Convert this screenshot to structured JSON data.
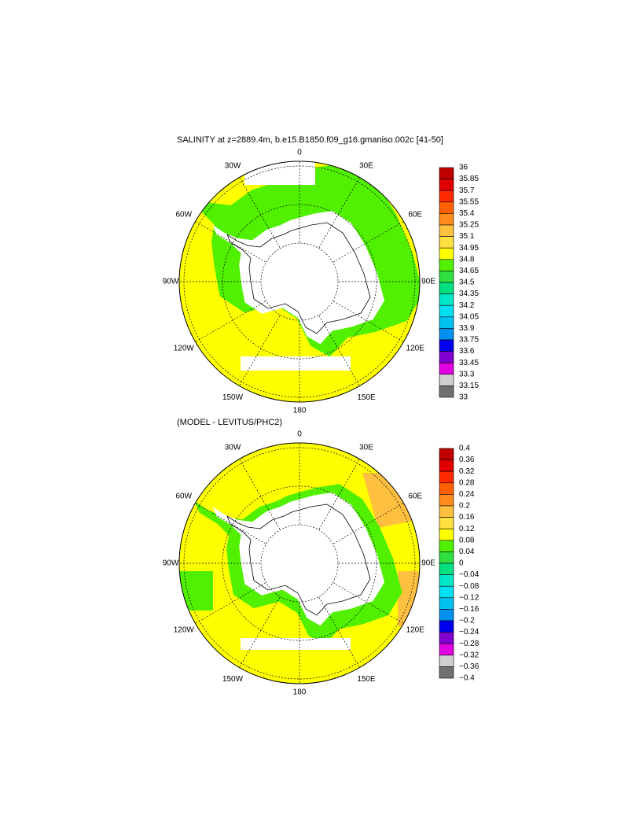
{
  "panels": [
    {
      "title": "SALINITY at z=2889.4m, b.e15.B1850.f09_g16.gmaniso.002c [41-50]",
      "lon_labels": [
        "0",
        "30E",
        "60E",
        "90E",
        "120E",
        "150E",
        "180",
        "150W",
        "120W",
        "90W",
        "60W",
        "30W"
      ],
      "colorbar": {
        "labels": [
          "36",
          "35.85",
          "35.7",
          "35.55",
          "35.4",
          "35.25",
          "35.1",
          "34.95",
          "34.8",
          "34.65",
          "34.5",
          "34.35",
          "34.2",
          "34.05",
          "33.9",
          "33.75",
          "33.6",
          "33.45",
          "33.3",
          "33.15",
          "33"
        ],
        "colors": [
          "#c00000",
          "#e00000",
          "#ff2a00",
          "#ff6000",
          "#ff8c1a",
          "#ffa030",
          "#ffc040",
          "#ffe040",
          "#ffff00",
          "#50f000",
          "#30e040",
          "#00e080",
          "#00e8c8",
          "#00e0f0",
          "#00c0f0",
          "#0090f0",
          "#0050f0",
          "#0000f0",
          "#8000d0",
          "#e000e0",
          "#d0d0d0",
          "#707070"
        ]
      }
    },
    {
      "title": "(MODEL - LEVITUS/PHC2)",
      "lon_labels": [
        "0",
        "30E",
        "60E",
        "90E",
        "120E",
        "150E",
        "180",
        "150W",
        "120W",
        "90W",
        "60W",
        "30W"
      ],
      "colorbar": {
        "labels": [
          "0.4",
          "0.36",
          "0.32",
          "0.28",
          "0.24",
          "0.2",
          "0.16",
          "0.12",
          "0.08",
          "0.04",
          "0",
          "−0.04",
          "−0.08",
          "−0.12",
          "−0.16",
          "−0.2",
          "−0.24",
          "−0.28",
          "−0.32",
          "−0.36",
          "−0.4"
        ],
        "colors": [
          "#c00000",
          "#e00000",
          "#ff2a00",
          "#ff6000",
          "#ff8c1a",
          "#ffa030",
          "#ffc040",
          "#ffe040",
          "#ffff00",
          "#50f000",
          "#30e040",
          "#00e080",
          "#00e8c8",
          "#00e0f0",
          "#00c0f0",
          "#0090f0",
          "#0050f0",
          "#0000f0",
          "#8000d0",
          "#e000e0",
          "#d0d0d0",
          "#707070"
        ]
      }
    }
  ]
}
